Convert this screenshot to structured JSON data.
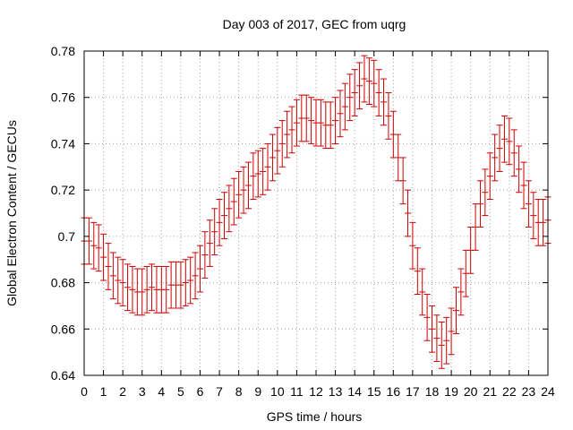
{
  "chart_data": {
    "type": "scatter",
    "title": "Day 003 of 2017, GEC from uqrg",
    "xlabel": "GPS time / hours",
    "ylabel": "Global Electron Content / GECUs",
    "xlim": [
      0,
      24
    ],
    "ylim": [
      0.64,
      0.78
    ],
    "xticks": [
      "0",
      "1",
      "2",
      "3",
      "4",
      "5",
      "6",
      "7",
      "8",
      "9",
      "10",
      "11",
      "12",
      "13",
      "14",
      "15",
      "16",
      "17",
      "18",
      "19",
      "20",
      "21",
      "22",
      "23",
      "24"
    ],
    "yticks": [
      "0.64",
      "0.66",
      "0.68",
      "0.7",
      "0.72",
      "0.74",
      "0.76",
      "0.78"
    ],
    "grid": true,
    "error_bar_halfwidth": 0.01,
    "series_color": "#cc0000",
    "series": [
      {
        "x": [
          0.0,
          0.25,
          0.5,
          0.75,
          1.0,
          1.25,
          1.5,
          1.75,
          2.0,
          2.25,
          2.5,
          2.75,
          3.0,
          3.25,
          3.5,
          3.75,
          4.0,
          4.25,
          4.5,
          4.75,
          5.0,
          5.25,
          5.5,
          5.75,
          6.0,
          6.25,
          6.5,
          6.75,
          7.0,
          7.25,
          7.5,
          7.75,
          8.0,
          8.25,
          8.5,
          8.75,
          9.0,
          9.25,
          9.5,
          9.75,
          10.0,
          10.25,
          10.5,
          10.75,
          11.0,
          11.25,
          11.5,
          11.75,
          12.0,
          12.25,
          12.5,
          12.75,
          13.0,
          13.25,
          13.5,
          13.75,
          14.0,
          14.25,
          14.5,
          14.75,
          15.0,
          15.25,
          15.5,
          15.75,
          16.0,
          16.25,
          16.5,
          16.75,
          17.0,
          17.25,
          17.5,
          17.75,
          18.0,
          18.25,
          18.5,
          18.75,
          19.0,
          19.25,
          19.5,
          19.75,
          20.0,
          20.25,
          20.5,
          20.75,
          21.0,
          21.25,
          21.5,
          21.75,
          22.0,
          22.25,
          22.5,
          22.75,
          23.0,
          23.25,
          23.5,
          23.75,
          24.0
        ],
        "y": [
          0.698,
          0.698,
          0.696,
          0.695,
          0.691,
          0.687,
          0.683,
          0.681,
          0.68,
          0.678,
          0.677,
          0.676,
          0.676,
          0.677,
          0.678,
          0.677,
          0.677,
          0.677,
          0.679,
          0.679,
          0.679,
          0.68,
          0.681,
          0.683,
          0.686,
          0.692,
          0.697,
          0.702,
          0.706,
          0.709,
          0.712,
          0.715,
          0.718,
          0.72,
          0.722,
          0.726,
          0.727,
          0.728,
          0.73,
          0.734,
          0.737,
          0.74,
          0.744,
          0.746,
          0.749,
          0.751,
          0.751,
          0.75,
          0.749,
          0.749,
          0.748,
          0.748,
          0.75,
          0.753,
          0.756,
          0.76,
          0.762,
          0.765,
          0.768,
          0.767,
          0.766,
          0.762,
          0.758,
          0.752,
          0.744,
          0.734,
          0.724,
          0.71,
          0.696,
          0.685,
          0.676,
          0.665,
          0.66,
          0.656,
          0.653,
          0.655,
          0.659,
          0.668,
          0.676,
          0.684,
          0.694,
          0.704,
          0.714,
          0.719,
          0.726,
          0.734,
          0.738,
          0.742,
          0.741,
          0.736,
          0.729,
          0.722,
          0.714,
          0.709,
          0.706,
          0.706,
          0.707
        ]
      }
    ]
  }
}
